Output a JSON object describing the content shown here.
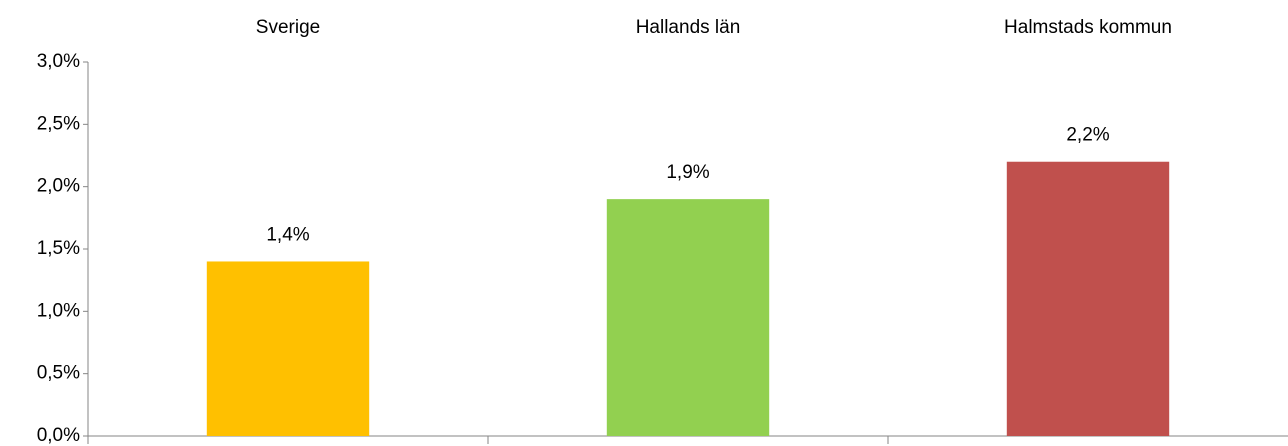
{
  "chart_data": {
    "type": "bar",
    "categories": [
      "Sverige",
      "Hallands län",
      "Halmstads kommun"
    ],
    "values": [
      1.4,
      1.9,
      2.2
    ],
    "value_labels": [
      "1,4%",
      "1,9%",
      "2,2%"
    ],
    "colors": [
      "#ffc000",
      "#92d050",
      "#c0504d"
    ],
    "ylim": [
      0,
      3
    ],
    "yticks": [
      {
        "value": 0,
        "label": "0,0%"
      },
      {
        "value": 0.5,
        "label": "0,5%"
      },
      {
        "value": 1,
        "label": "1,0%"
      },
      {
        "value": 1.5,
        "label": "1,5%"
      },
      {
        "value": 2,
        "label": "2,0%"
      },
      {
        "value": 2.5,
        "label": "2,5%"
      },
      {
        "value": 3,
        "label": "3,0%"
      }
    ],
    "grid": false
  }
}
